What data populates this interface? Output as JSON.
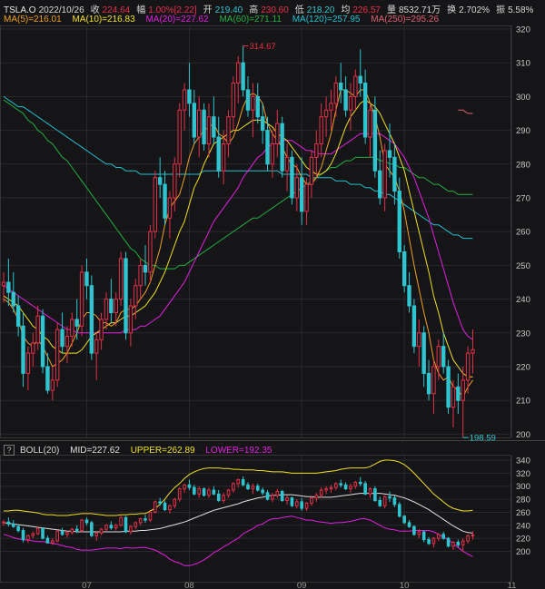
{
  "header": {
    "symbol": "TSLA.O",
    "date": "2022/10/26",
    "close_label": "收",
    "close": "224.64",
    "chg_label": "幅",
    "chg": "1.00%[2.22]",
    "open_label": "开",
    "open": "219.40",
    "high_label": "高",
    "high": "230.60",
    "low_label": "低",
    "low": "218.20",
    "avg_label": "均",
    "avg": "226.57",
    "vol_label": "量",
    "vol": "8532.71万",
    "turn_label": "换",
    "turn": "2.702%",
    "amp_label": "振",
    "amp": "5.58%"
  },
  "ma_legend": [
    {
      "label": "MA(5)=216.01",
      "color": "#f0a020"
    },
    {
      "label": "MA(10)=216.83",
      "color": "#f0e020"
    },
    {
      "label": "MA(20)=227.62",
      "color": "#e020e0"
    },
    {
      "label": "MA(60)=271.11",
      "color": "#20b040"
    },
    {
      "label": "MA(120)=257.95",
      "color": "#20c0d0"
    },
    {
      "label": "MA(250)=295.26",
      "color": "#e06070"
    }
  ],
  "boll_legend": {
    "help": "?",
    "name": "BOLL(20)",
    "mid": "MID=227.62",
    "upper": "UPPER=262.89",
    "lower": "LOWER=192.35",
    "mid_color": "#e0e0e0",
    "upper_color": "#f0e020",
    "lower_color": "#e020e0"
  },
  "colors": {
    "up": "#e2314a",
    "down": "#2ec5d0",
    "grid": "#2a2a2e",
    "axis_text": "#c8c8c8"
  },
  "chart_data": {
    "type": "candlestick",
    "main": {
      "ylim": [
        195,
        322
      ],
      "yticks": [
        200,
        210,
        220,
        230,
        240,
        250,
        260,
        270,
        280,
        290,
        300,
        310,
        320
      ],
      "high_marker": "314.67",
      "low_marker": "198.59"
    },
    "boll": {
      "ylim": [
        185,
        345
      ],
      "yticks": [
        200,
        220,
        240,
        260,
        280,
        300,
        320,
        340
      ]
    },
    "x_ticks": [
      {
        "label": "07",
        "i": 17
      },
      {
        "label": "08",
        "i": 38
      },
      {
        "label": "09",
        "i": 61
      },
      {
        "label": "10",
        "i": 82
      },
      {
        "label": "11",
        "i": 104
      }
    ],
    "candles": [
      [
        244,
        248,
        239,
        245
      ],
      [
        245,
        252,
        238,
        242
      ],
      [
        242,
        248,
        236,
        238
      ],
      [
        238,
        241,
        229,
        232
      ],
      [
        232,
        236,
        214,
        218
      ],
      [
        218,
        226,
        213,
        224
      ],
      [
        224,
        230,
        220,
        227
      ],
      [
        227,
        238,
        225,
        235
      ],
      [
        235,
        237,
        218,
        220
      ],
      [
        220,
        224,
        212,
        213
      ],
      [
        213,
        220,
        210,
        216
      ],
      [
        216,
        233,
        214,
        231
      ],
      [
        231,
        236,
        224,
        226
      ],
      [
        226,
        232,
        221,
        229
      ],
      [
        229,
        236,
        226,
        234
      ],
      [
        234,
        240,
        228,
        232
      ],
      [
        232,
        250,
        229,
        248
      ],
      [
        248,
        252,
        240,
        244
      ],
      [
        244,
        247,
        222,
        224
      ],
      [
        224,
        230,
        216,
        228
      ],
      [
        228,
        236,
        225,
        234
      ],
      [
        234,
        242,
        231,
        240
      ],
      [
        240,
        246,
        233,
        236
      ],
      [
        236,
        242,
        232,
        240
      ],
      [
        240,
        254,
        238,
        252
      ],
      [
        252,
        254,
        228,
        230
      ],
      [
        230,
        240,
        226,
        238
      ],
      [
        238,
        246,
        234,
        244
      ],
      [
        244,
        252,
        240,
        250
      ],
      [
        250,
        256,
        244,
        248
      ],
      [
        248,
        262,
        245,
        260
      ],
      [
        260,
        278,
        258,
        276
      ],
      [
        276,
        282,
        270,
        274
      ],
      [
        274,
        278,
        262,
        264
      ],
      [
        264,
        272,
        258,
        270
      ],
      [
        270,
        282,
        266,
        280
      ],
      [
        280,
        298,
        276,
        296
      ],
      [
        296,
        304,
        290,
        302
      ],
      [
        302,
        310,
        294,
        298
      ],
      [
        298,
        302,
        286,
        288
      ],
      [
        288,
        300,
        282,
        296
      ],
      [
        296,
        298,
        284,
        286
      ],
      [
        286,
        298,
        282,
        294
      ],
      [
        294,
        300,
        286,
        288
      ],
      [
        288,
        294,
        276,
        278
      ],
      [
        278,
        290,
        274,
        286
      ],
      [
        286,
        296,
        282,
        294
      ],
      [
        294,
        306,
        290,
        304
      ],
      [
        304,
        312,
        298,
        310
      ],
      [
        310,
        315,
        300,
        302
      ],
      [
        302,
        306,
        294,
        296
      ],
      [
        296,
        304,
        288,
        300
      ],
      [
        300,
        304,
        292,
        294
      ],
      [
        294,
        298,
        286,
        290
      ],
      [
        290,
        294,
        278,
        280
      ],
      [
        280,
        290,
        276,
        286
      ],
      [
        286,
        296,
        282,
        292
      ],
      [
        292,
        294,
        276,
        278
      ],
      [
        278,
        286,
        272,
        282
      ],
      [
        282,
        284,
        268,
        270
      ],
      [
        270,
        280,
        266,
        276
      ],
      [
        276,
        282,
        262,
        266
      ],
      [
        266,
        276,
        262,
        274
      ],
      [
        274,
        284,
        270,
        282
      ],
      [
        282,
        290,
        276,
        286
      ],
      [
        286,
        298,
        282,
        294
      ],
      [
        294,
        300,
        288,
        296
      ],
      [
        296,
        302,
        290,
        298
      ],
      [
        298,
        306,
        294,
        304
      ],
      [
        304,
        310,
        298,
        302
      ],
      [
        302,
        306,
        294,
        296
      ],
      [
        296,
        304,
        290,
        300
      ],
      [
        300,
        308,
        296,
        306
      ],
      [
        306,
        314,
        300,
        304
      ],
      [
        304,
        308,
        286,
        288
      ],
      [
        288,
        298,
        282,
        296
      ],
      [
        296,
        300,
        276,
        278
      ],
      [
        278,
        284,
        268,
        270
      ],
      [
        270,
        286,
        266,
        284
      ],
      [
        284,
        292,
        276,
        282
      ],
      [
        282,
        286,
        268,
        272
      ],
      [
        272,
        276,
        252,
        254
      ],
      [
        254,
        256,
        242,
        244
      ],
      [
        244,
        248,
        236,
        238
      ],
      [
        238,
        240,
        224,
        226
      ],
      [
        226,
        234,
        220,
        230
      ],
      [
        230,
        232,
        214,
        218
      ],
      [
        218,
        222,
        210,
        212
      ],
      [
        212,
        222,
        206,
        220
      ],
      [
        220,
        228,
        216,
        226
      ],
      [
        226,
        230,
        218,
        220
      ],
      [
        220,
        222,
        206,
        208
      ],
      [
        208,
        216,
        202,
        214
      ],
      [
        214,
        218,
        206,
        210
      ],
      [
        210,
        220,
        199,
        216
      ],
      [
        216,
        226,
        212,
        224
      ],
      [
        224,
        231,
        218,
        225
      ]
    ],
    "ma5": [
      240,
      239,
      237,
      234,
      229,
      227,
      226,
      228,
      226,
      223,
      220,
      221,
      222,
      224,
      227,
      230,
      234,
      236,
      236,
      235,
      233,
      233,
      232,
      233,
      236,
      237,
      237,
      238,
      240,
      242,
      245,
      250,
      255,
      262,
      267,
      269,
      271,
      276,
      282,
      286,
      288,
      290,
      291,
      292,
      289,
      288,
      286,
      288,
      292,
      297,
      300,
      301,
      300,
      298,
      292,
      289,
      287,
      285,
      282,
      280,
      279,
      276,
      274,
      274,
      276,
      279,
      284,
      289,
      296,
      302,
      302,
      301,
      300,
      302,
      302,
      298,
      294,
      288,
      280,
      278,
      276,
      272,
      266,
      258,
      250,
      243,
      236,
      230,
      222,
      218,
      216,
      217,
      214,
      213,
      211,
      214,
      216
    ],
    "ma10": [
      241,
      240,
      239,
      238,
      236,
      234,
      232,
      231,
      229,
      228,
      226,
      225,
      224,
      224,
      224,
      224,
      225,
      227,
      229,
      230,
      231,
      232,
      233,
      233,
      234,
      235,
      235,
      236,
      237,
      238,
      240,
      242,
      245,
      248,
      252,
      256,
      260,
      263,
      268,
      273,
      276,
      280,
      283,
      286,
      287,
      288,
      289,
      290,
      290,
      291,
      292,
      293,
      293,
      293,
      292,
      291,
      289,
      288,
      287,
      285,
      283,
      281,
      279,
      278,
      277,
      277,
      278,
      280,
      283,
      287,
      291,
      294,
      296,
      298,
      299,
      298,
      297,
      295,
      292,
      289,
      286,
      282,
      278,
      272,
      266,
      260,
      254,
      248,
      241,
      236,
      230,
      226,
      222,
      220,
      218,
      217,
      217
    ],
    "ma20": [
      244,
      243,
      242,
      241,
      240,
      239,
      238,
      237,
      236,
      235,
      234,
      233,
      232,
      231,
      231,
      230,
      230,
      230,
      230,
      230,
      230,
      230,
      230,
      230,
      230,
      231,
      231,
      231,
      232,
      232,
      233,
      234,
      235,
      237,
      239,
      241,
      243,
      245,
      248,
      251,
      254,
      257,
      260,
      263,
      265,
      267,
      269,
      271,
      273,
      276,
      278,
      280,
      282,
      283,
      285,
      286,
      286,
      287,
      287,
      287,
      286,
      285,
      284,
      284,
      283,
      283,
      283,
      283,
      284,
      285,
      286,
      287,
      288,
      289,
      289,
      289,
      289,
      289,
      288,
      287,
      286,
      284,
      282,
      279,
      276,
      272,
      268,
      264,
      259,
      254,
      249,
      244,
      239,
      235,
      231,
      229,
      228
    ],
    "ma60": [
      299,
      298,
      297,
      296,
      295,
      293,
      292,
      290,
      289,
      287,
      286,
      284,
      282,
      281,
      279,
      277,
      275,
      273,
      271,
      269,
      267,
      265,
      263,
      261,
      259,
      257,
      255,
      254,
      252,
      251,
      250,
      250,
      249,
      249,
      249,
      249,
      250,
      250,
      251,
      252,
      253,
      254,
      255,
      256,
      257,
      258,
      259,
      260,
      261,
      262,
      263,
      264,
      264,
      265,
      266,
      267,
      268,
      269,
      270,
      271,
      272,
      273,
      274,
      275,
      276,
      277,
      278,
      279,
      279,
      280,
      281,
      281,
      282,
      282,
      282,
      282,
      282,
      281,
      281,
      280,
      280,
      279,
      279,
      278,
      277,
      276,
      276,
      275,
      274,
      274,
      273,
      272,
      272,
      271,
      271,
      271,
      271
    ],
    "ma120": [
      300,
      299,
      298,
      297,
      297,
      296,
      295,
      294,
      293,
      292,
      291,
      290,
      289,
      288,
      287,
      286,
      285,
      284,
      283,
      282,
      281,
      280,
      280,
      279,
      279,
      278,
      278,
      278,
      277,
      277,
      277,
      277,
      277,
      277,
      277,
      277,
      277,
      277,
      277,
      277,
      277,
      278,
      278,
      278,
      278,
      278,
      278,
      278,
      278,
      278,
      278,
      278,
      278,
      278,
      278,
      278,
      278,
      277,
      277,
      277,
      277,
      277,
      277,
      276,
      276,
      276,
      276,
      276,
      275,
      275,
      275,
      274,
      274,
      274,
      273,
      273,
      272,
      272,
      271,
      271,
      270,
      269,
      268,
      267,
      266,
      265,
      264,
      263,
      262,
      262,
      261,
      260,
      259,
      259,
      258,
      258,
      258
    ],
    "ma250": [
      null,
      null,
      null,
      null,
      null,
      null,
      null,
      null,
      null,
      null,
      null,
      null,
      null,
      null,
      null,
      null,
      null,
      null,
      null,
      null,
      null,
      null,
      null,
      null,
      null,
      null,
      null,
      null,
      null,
      null,
      null,
      null,
      null,
      null,
      null,
      null,
      null,
      null,
      null,
      null,
      null,
      null,
      null,
      null,
      null,
      null,
      null,
      null,
      null,
      null,
      null,
      null,
      null,
      null,
      null,
      null,
      null,
      null,
      null,
      null,
      null,
      null,
      null,
      null,
      null,
      null,
      null,
      null,
      null,
      null,
      null,
      null,
      null,
      null,
      null,
      null,
      null,
      null,
      null,
      null,
      null,
      null,
      null,
      null,
      null,
      null,
      null,
      null,
      null,
      null,
      null,
      null,
      null,
      296,
      296,
      295,
      295
    ],
    "boll_upper": [
      262,
      262,
      263,
      263,
      262,
      261,
      260,
      259,
      257,
      256,
      256,
      255,
      255,
      255,
      256,
      257,
      258,
      258,
      258,
      257,
      256,
      255,
      255,
      255,
      256,
      256,
      257,
      257,
      258,
      258,
      262,
      266,
      272,
      280,
      290,
      298,
      304,
      312,
      318,
      322,
      325,
      327,
      328,
      328,
      328,
      327,
      327,
      326,
      326,
      325,
      325,
      325,
      324,
      324,
      323,
      322,
      322,
      322,
      321,
      320,
      320,
      320,
      320,
      320,
      320,
      321,
      322,
      323,
      324,
      326,
      327,
      328,
      328,
      328,
      328,
      330,
      334,
      338,
      340,
      340,
      339,
      337,
      333,
      327,
      320,
      312,
      304,
      296,
      288,
      282,
      276,
      270,
      266,
      264,
      262,
      262,
      263
    ],
    "boll_mid": [
      244,
      243,
      242,
      241,
      240,
      239,
      238,
      237,
      236,
      235,
      234,
      233,
      232,
      231,
      231,
      230,
      230,
      230,
      230,
      230,
      230,
      230,
      230,
      230,
      230,
      231,
      231,
      231,
      232,
      232,
      233,
      234,
      235,
      237,
      239,
      241,
      243,
      245,
      248,
      251,
      254,
      257,
      260,
      263,
      265,
      267,
      269,
      271,
      273,
      276,
      278,
      280,
      282,
      283,
      285,
      286,
      286,
      287,
      287,
      287,
      286,
      285,
      284,
      284,
      283,
      283,
      283,
      283,
      284,
      285,
      286,
      287,
      288,
      289,
      289,
      289,
      289,
      289,
      288,
      287,
      286,
      284,
      282,
      279,
      276,
      272,
      268,
      264,
      259,
      254,
      249,
      244,
      239,
      235,
      231,
      229,
      228
    ],
    "boll_lower": [
      226,
      224,
      221,
      219,
      218,
      217,
      216,
      215,
      215,
      214,
      212,
      211,
      209,
      207,
      206,
      203,
      202,
      202,
      202,
      203,
      204,
      205,
      205,
      205,
      204,
      206,
      205,
      205,
      206,
      206,
      204,
      202,
      198,
      194,
      188,
      184,
      182,
      178,
      178,
      180,
      183,
      187,
      192,
      198,
      202,
      207,
      211,
      216,
      220,
      227,
      231,
      235,
      240,
      242,
      247,
      250,
      250,
      252,
      253,
      254,
      252,
      250,
      248,
      248,
      246,
      245,
      244,
      243,
      244,
      244,
      245,
      246,
      248,
      250,
      250,
      248,
      244,
      240,
      236,
      234,
      233,
      231,
      231,
      231,
      232,
      232,
      232,
      232,
      230,
      226,
      222,
      218,
      212,
      206,
      200,
      196,
      192
    ]
  }
}
